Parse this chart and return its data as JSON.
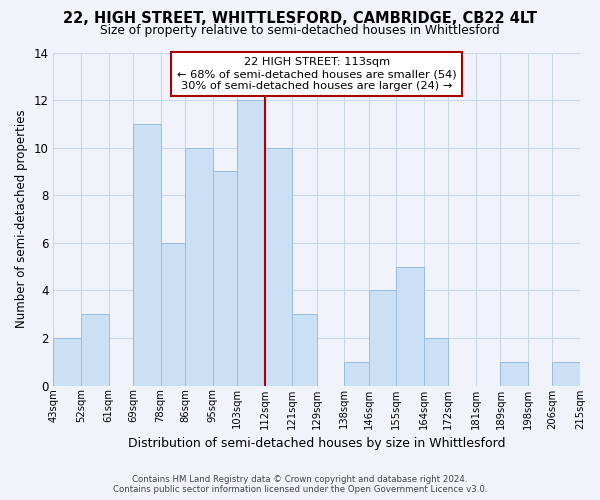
{
  "title": "22, HIGH STREET, WHITTLESFORD, CAMBRIDGE, CB22 4LT",
  "subtitle": "Size of property relative to semi-detached houses in Whittlesford",
  "xlabel": "Distribution of semi-detached houses by size in Whittlesford",
  "ylabel": "Number of semi-detached properties",
  "bin_edges": [
    43,
    52,
    61,
    69,
    78,
    86,
    95,
    103,
    112,
    121,
    129,
    138,
    146,
    155,
    164,
    172,
    181,
    189,
    198,
    206,
    215
  ],
  "bar_heights": [
    2,
    3,
    0,
    11,
    6,
    10,
    9,
    12,
    10,
    3,
    0,
    1,
    4,
    5,
    2,
    0,
    0,
    1,
    0,
    1
  ],
  "bar_color": "#cce0f5",
  "bar_edge_color": "#99bde0",
  "vline_x": 112,
  "vline_color": "#aa0000",
  "ylim": [
    0,
    14
  ],
  "yticks": [
    0,
    2,
    4,
    6,
    8,
    10,
    12,
    14
  ],
  "annotation_title": "22 HIGH STREET: 113sqm",
  "annotation_line1": "← 68% of semi-detached houses are smaller (54)",
  "annotation_line2": "30% of semi-detached houses are larger (24) →",
  "annotation_box_color": "#ffffff",
  "annotation_box_edge": "#aa0000",
  "tick_labels": [
    "43sqm",
    "52sqm",
    "61sqm",
    "69sqm",
    "78sqm",
    "86sqm",
    "95sqm",
    "103sqm",
    "112sqm",
    "121sqm",
    "129sqm",
    "138sqm",
    "146sqm",
    "155sqm",
    "164sqm",
    "172sqm",
    "181sqm",
    "189sqm",
    "198sqm",
    "206sqm",
    "215sqm"
  ],
  "footer_line1": "Contains HM Land Registry data © Crown copyright and database right 2024.",
  "footer_line2": "Contains public sector information licensed under the Open Government Licence v3.0.",
  "background_color": "#f0f4fa",
  "grid_color": "#c8d8e8"
}
